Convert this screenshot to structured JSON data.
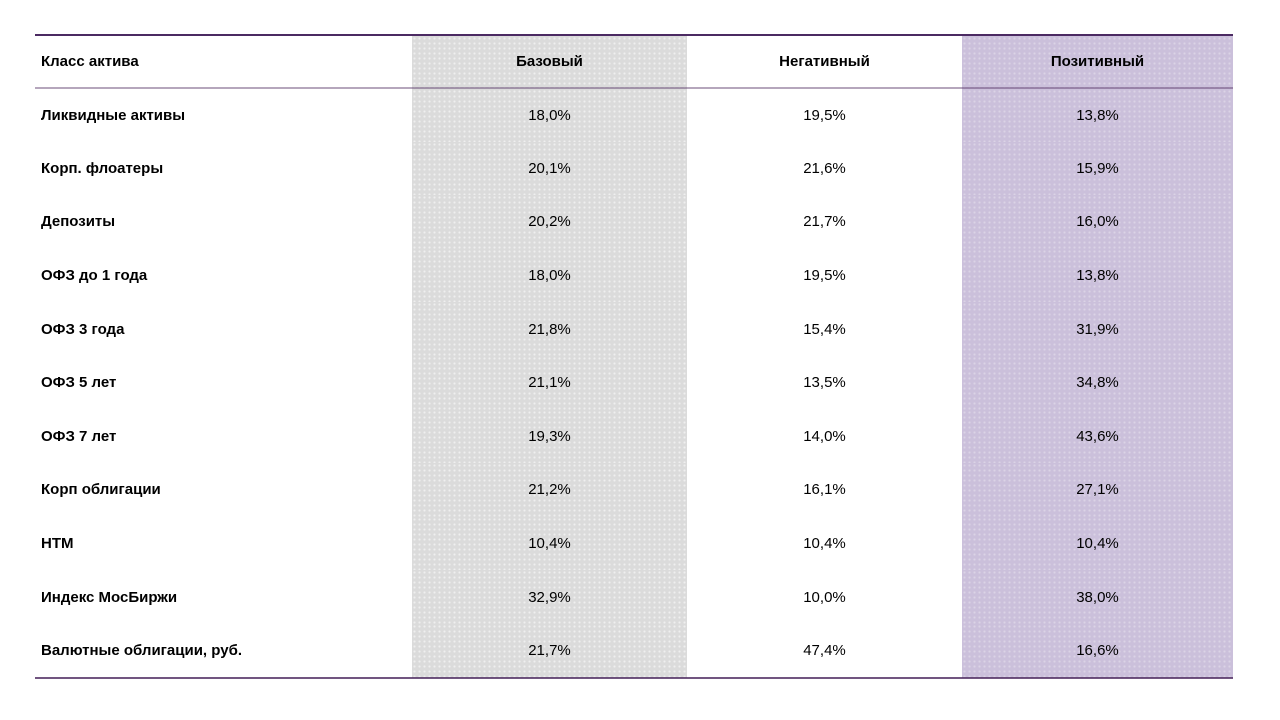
{
  "table": {
    "columns": [
      {
        "key": "asset",
        "label": "Класс актива"
      },
      {
        "key": "base",
        "label": "Базовый"
      },
      {
        "key": "negative",
        "label": "Негативный"
      },
      {
        "key": "positive",
        "label": "Позитивный"
      }
    ],
    "rows": [
      {
        "asset": "Ликвидные активы",
        "base": "18,0%",
        "negative": "19,5%",
        "positive": "13,8%"
      },
      {
        "asset": "Корп. флоатеры",
        "base": "20,1%",
        "negative": "21,6%",
        "positive": "15,9%"
      },
      {
        "asset": "Депозиты",
        "base": "20,2%",
        "negative": "21,7%",
        "positive": "16,0%"
      },
      {
        "asset": "ОФЗ до 1 года",
        "base": "18,0%",
        "negative": "19,5%",
        "positive": "13,8%"
      },
      {
        "asset": "ОФЗ 3 года",
        "base": "21,8%",
        "negative": "15,4%",
        "positive": "31,9%"
      },
      {
        "asset": "ОФЗ 5 лет",
        "base": "21,1%",
        "negative": "13,5%",
        "positive": "34,8%"
      },
      {
        "asset": "ОФЗ 7 лет",
        "base": "19,3%",
        "negative": "14,0%",
        "positive": "43,6%"
      },
      {
        "asset": "Корп облигации",
        "base": "21,2%",
        "negative": "16,1%",
        "positive": "27,1%"
      },
      {
        "asset": "HTM",
        "base": "10,4%",
        "negative": "10,4%",
        "positive": "10,4%"
      },
      {
        "asset": "Индекс МосБиржи",
        "base": "32,9%",
        "negative": "10,0%",
        "positive": "38,0%"
      },
      {
        "asset": "Валютные облигации, руб.",
        "base": "21,7%",
        "negative": "47,4%",
        "positive": "16,6%"
      }
    ],
    "colors": {
      "base_column_bg": "#dbdbdb",
      "positive_column_bg": "#cbc0db",
      "top_border": "#4b2a62",
      "header_separator": "#b3a4c4",
      "bottom_border": "#77548d",
      "text": "#000000"
    }
  },
  "chart_data": {
    "type": "table",
    "title": "",
    "categories": [
      "Ликвидные активы",
      "Корп. флоатеры",
      "Депозиты",
      "ОФЗ до 1 года",
      "ОФЗ 3 года",
      "ОФЗ 5 лет",
      "ОФЗ 7 лет",
      "Корп облигации",
      "HTM",
      "Индекс МосБиржи",
      "Валютные облигации, руб."
    ],
    "series": [
      {
        "name": "Базовый",
        "values": [
          18.0,
          20.1,
          20.2,
          18.0,
          21.8,
          21.1,
          19.3,
          21.2,
          10.4,
          32.9,
          21.7
        ]
      },
      {
        "name": "Негативный",
        "values": [
          19.5,
          21.6,
          21.7,
          19.5,
          15.4,
          13.5,
          14.0,
          16.1,
          10.4,
          10.0,
          47.4
        ]
      },
      {
        "name": "Позитивный",
        "values": [
          13.8,
          15.9,
          16.0,
          13.8,
          31.9,
          34.8,
          43.6,
          27.1,
          10.4,
          38.0,
          16.6
        ]
      }
    ],
    "value_unit": "%",
    "first_column_header": "Класс актива"
  }
}
